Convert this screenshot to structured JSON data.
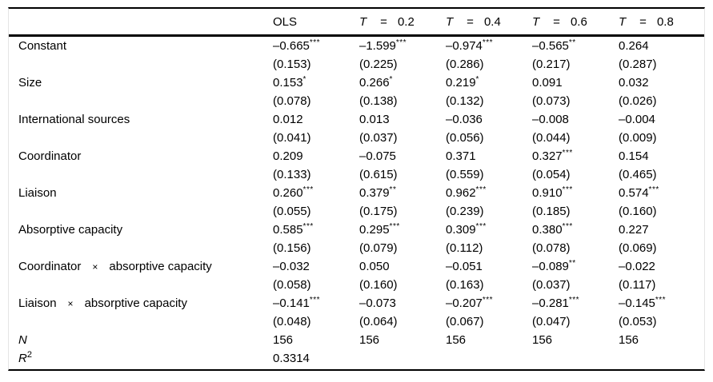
{
  "table": {
    "columns": [
      {
        "t": "",
        "eq": "",
        "val": "",
        "plain": "OLS"
      },
      {
        "t": "T",
        "eq": "=",
        "val": "0.2",
        "plain": ""
      },
      {
        "t": "T",
        "eq": "=",
        "val": "0.4",
        "plain": ""
      },
      {
        "t": "T",
        "eq": "=",
        "val": "0.6",
        "plain": ""
      },
      {
        "t": "T",
        "eq": "=",
        "val": "0.8",
        "plain": ""
      }
    ],
    "rows": [
      {
        "label": "Constant",
        "times": "",
        "label2": "",
        "coef": [
          {
            "v": "–0.665",
            "s": "***"
          },
          {
            "v": "–1.599",
            "s": "***"
          },
          {
            "v": "–0.974",
            "s": "***"
          },
          {
            "v": "–0.565",
            "s": "**"
          },
          {
            "v": "0.264",
            "s": ""
          }
        ],
        "se": [
          "(0.153)",
          "(0.225)",
          "(0.286)",
          "(0.217)",
          "(0.287)"
        ]
      },
      {
        "label": "Size",
        "times": "",
        "label2": "",
        "coef": [
          {
            "v": "0.153",
            "s": "*"
          },
          {
            "v": "0.266",
            "s": "*"
          },
          {
            "v": "0.219",
            "s": "*"
          },
          {
            "v": "0.091",
            "s": ""
          },
          {
            "v": "0.032",
            "s": ""
          }
        ],
        "se": [
          "(0.078)",
          "(0.138)",
          "(0.132)",
          "(0.073)",
          "(0.026)"
        ]
      },
      {
        "label": "International sources",
        "times": "",
        "label2": "",
        "coef": [
          {
            "v": "0.012",
            "s": ""
          },
          {
            "v": "0.013",
            "s": ""
          },
          {
            "v": "–0.036",
            "s": ""
          },
          {
            "v": "–0.008",
            "s": ""
          },
          {
            "v": "–0.004",
            "s": ""
          }
        ],
        "se": [
          "(0.041)",
          "(0.037)",
          "(0.056)",
          "(0.044)",
          "(0.009)"
        ]
      },
      {
        "label": "Coordinator",
        "times": "",
        "label2": "",
        "coef": [
          {
            "v": "0.209",
            "s": ""
          },
          {
            "v": "–0.075",
            "s": ""
          },
          {
            "v": "0.371",
            "s": ""
          },
          {
            "v": "0.327",
            "s": "***"
          },
          {
            "v": "0.154",
            "s": ""
          }
        ],
        "se": [
          "(0.133)",
          "(0.615)",
          "(0.559)",
          "(0.054)",
          "(0.465)"
        ]
      },
      {
        "label": "Liaison",
        "times": "",
        "label2": "",
        "coef": [
          {
            "v": "0.260",
            "s": "***"
          },
          {
            "v": "0.379",
            "s": "**"
          },
          {
            "v": "0.962",
            "s": "***"
          },
          {
            "v": "0.910",
            "s": "***"
          },
          {
            "v": "0.574",
            "s": "***"
          }
        ],
        "se": [
          "(0.055)",
          "(0.175)",
          "(0.239)",
          "(0.185)",
          "(0.160)"
        ]
      },
      {
        "label": "Absorptive capacity",
        "times": "",
        "label2": "",
        "coef": [
          {
            "v": "0.585",
            "s": "***"
          },
          {
            "v": "0.295",
            "s": "***"
          },
          {
            "v": "0.309",
            "s": "***"
          },
          {
            "v": "0.380",
            "s": "***"
          },
          {
            "v": "0.227",
            "s": ""
          }
        ],
        "se": [
          "(0.156)",
          "(0.079)",
          "(0.112)",
          "(0.078)",
          "(0.069)"
        ]
      },
      {
        "label": "Coordinator",
        "times": "×",
        "label2": "absorptive capacity",
        "coef": [
          {
            "v": "–0.032",
            "s": ""
          },
          {
            "v": "0.050",
            "s": ""
          },
          {
            "v": "–0.051",
            "s": ""
          },
          {
            "v": "–0.089",
            "s": "**"
          },
          {
            "v": "–0.022",
            "s": ""
          }
        ],
        "se": [
          "(0.058)",
          "(0.160)",
          "(0.163)",
          "(0.037)",
          "(0.117)"
        ]
      },
      {
        "label": "Liaison",
        "times": "×",
        "label2": "absorptive capacity",
        "coef": [
          {
            "v": "–0.141",
            "s": "***"
          },
          {
            "v": "–0.073",
            "s": ""
          },
          {
            "v": "–0.207",
            "s": "***"
          },
          {
            "v": "–0.281",
            "s": "***"
          },
          {
            "v": "–0.145",
            "s": "***"
          }
        ],
        "se": [
          "(0.048)",
          "(0.064)",
          "(0.067)",
          "(0.047)",
          "(0.053)"
        ]
      }
    ],
    "stats": [
      {
        "label": "N",
        "sup": "",
        "cells": [
          "156",
          "156",
          "156",
          "156",
          "156"
        ]
      },
      {
        "label": "R",
        "sup": "2",
        "cells": [
          "0.3314",
          "",
          "",
          "",
          ""
        ]
      }
    ]
  }
}
